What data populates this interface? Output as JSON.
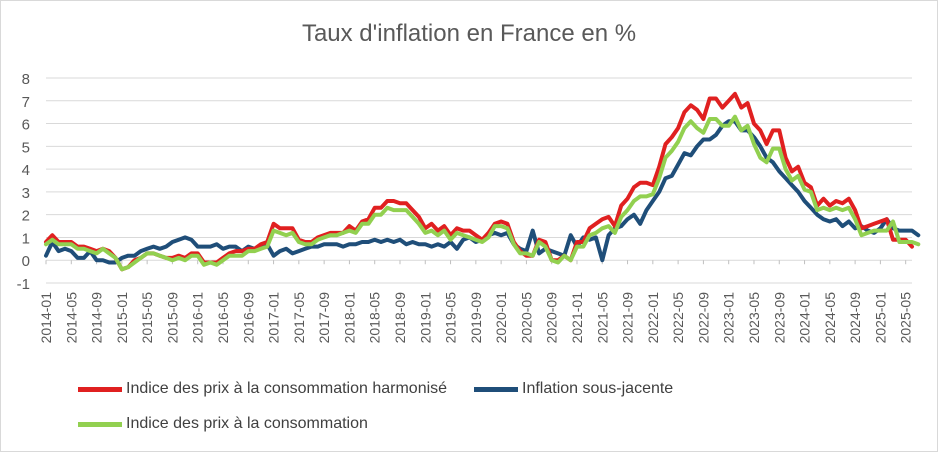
{
  "chart_data": {
    "type": "line",
    "title": "Taux d'inflation en France en %",
    "xlabel": "",
    "ylabel": "",
    "ylim": [
      -1,
      8
    ],
    "yticks": [
      -1,
      0,
      1,
      2,
      3,
      4,
      5,
      6,
      7,
      8
    ],
    "grid": "horizontal",
    "legend_position": "bottom",
    "x_tick_labels": [
      "2014-01",
      "2014-05",
      "2014-09",
      "2015-01",
      "2015-05",
      "2015-09",
      "2016-01",
      "2016-05",
      "2016-09",
      "2017-01",
      "2017-05",
      "2017-09",
      "2018-01",
      "2018-05",
      "2018-09",
      "2019-01",
      "2019-05",
      "2019-09",
      "2020-01",
      "2020-05",
      "2020-09",
      "2021-01",
      "2021-05",
      "2021-09",
      "2022-01",
      "2022-05",
      "2022-09",
      "2023-01",
      "2023-05",
      "2023-09",
      "2024-01",
      "2024-05",
      "2024-09",
      "2025-01",
      "2025-05"
    ],
    "x_start": "2014-01",
    "x_end": "2025-05",
    "series": [
      {
        "name": "Indice des prix à la consommation harmonisé",
        "color": "#e02020",
        "values": [
          0.8,
          1.1,
          0.8,
          0.8,
          0.8,
          0.6,
          0.6,
          0.5,
          0.4,
          0.5,
          0.4,
          0.1,
          -0.4,
          -0.3,
          0.0,
          0.1,
          0.3,
          0.3,
          0.2,
          0.1,
          0.1,
          0.2,
          0.1,
          0.3,
          0.3,
          -0.1,
          -0.1,
          -0.1,
          0.1,
          0.3,
          0.4,
          0.4,
          0.5,
          0.5,
          0.7,
          0.8,
          1.6,
          1.4,
          1.4,
          1.4,
          0.9,
          0.8,
          0.8,
          1.0,
          1.1,
          1.2,
          1.2,
          1.2,
          1.5,
          1.3,
          1.7,
          1.8,
          2.3,
          2.3,
          2.6,
          2.6,
          2.5,
          2.5,
          2.2,
          1.9,
          1.4,
          1.6,
          1.3,
          1.5,
          1.1,
          1.4,
          1.3,
          1.3,
          1.1,
          0.9,
          1.2,
          1.6,
          1.7,
          1.6,
          0.8,
          0.4,
          0.2,
          0.2,
          0.9,
          0.8,
          0.0,
          0.0,
          0.2,
          0.0,
          0.8,
          0.8,
          1.4,
          1.6,
          1.8,
          1.9,
          1.5,
          2.4,
          2.7,
          3.2,
          3.4,
          3.4,
          3.3,
          4.1,
          5.1,
          5.4,
          5.8,
          6.5,
          6.8,
          6.6,
          6.2,
          7.1,
          7.1,
          6.7,
          7.0,
          7.3,
          6.7,
          6.9,
          6.0,
          5.7,
          5.1,
          5.7,
          5.7,
          4.5,
          3.9,
          4.1,
          3.4,
          3.2,
          2.4,
          2.7,
          2.4,
          2.6,
          2.5,
          2.7,
          2.2,
          1.4,
          1.5,
          1.6,
          1.7,
          1.8,
          0.9,
          0.9,
          0.9,
          0.6
        ]
      },
      {
        "name": "Inflation sous-jacente",
        "color": "#1f4e79",
        "values": [
          0.2,
          0.8,
          0.4,
          0.5,
          0.4,
          0.1,
          0.1,
          0.4,
          0.0,
          0.0,
          -0.1,
          -0.1,
          0.1,
          0.2,
          0.2,
          0.4,
          0.5,
          0.6,
          0.5,
          0.6,
          0.8,
          0.9,
          1.0,
          0.9,
          0.6,
          0.6,
          0.6,
          0.7,
          0.5,
          0.6,
          0.6,
          0.4,
          0.6,
          0.5,
          0.6,
          0.7,
          0.2,
          0.4,
          0.5,
          0.3,
          0.4,
          0.5,
          0.6,
          0.6,
          0.7,
          0.7,
          0.7,
          0.6,
          0.7,
          0.7,
          0.8,
          0.8,
          0.9,
          0.8,
          0.9,
          0.8,
          0.9,
          0.7,
          0.8,
          0.7,
          0.7,
          0.6,
          0.7,
          0.6,
          0.8,
          0.5,
          0.9,
          1.0,
          0.8,
          0.9,
          1.1,
          1.2,
          1.1,
          1.2,
          0.7,
          0.5,
          0.4,
          1.3,
          0.3,
          0.5,
          0.4,
          0.3,
          0.2,
          1.1,
          0.6,
          1.0,
          0.9,
          1.0,
          0.0,
          1.1,
          1.4,
          1.5,
          1.8,
          2.0,
          1.6,
          2.2,
          2.6,
          3.0,
          3.6,
          3.7,
          4.2,
          4.7,
          4.6,
          5.0,
          5.3,
          5.3,
          5.5,
          5.9,
          6.1,
          6.1,
          5.7,
          5.7,
          5.4,
          5.0,
          4.5,
          4.3,
          3.9,
          3.6,
          3.3,
          3.0,
          2.6,
          2.3,
          2.0,
          1.8,
          1.7,
          1.8,
          1.5,
          1.7,
          1.4,
          1.5,
          1.3,
          1.2,
          1.4,
          1.8,
          1.4,
          1.3,
          1.3,
          1.3,
          1.1
        ]
      },
      {
        "name": "Indice des prix à la consommation",
        "color": "#92d050",
        "values": [
          0.7,
          0.9,
          0.7,
          0.7,
          0.7,
          0.5,
          0.5,
          0.4,
          0.3,
          0.5,
          0.3,
          0.1,
          -0.4,
          -0.3,
          -0.1,
          0.1,
          0.3,
          0.3,
          0.2,
          0.1,
          0.0,
          0.1,
          0.0,
          0.2,
          0.2,
          -0.2,
          -0.1,
          -0.2,
          0.0,
          0.2,
          0.2,
          0.2,
          0.4,
          0.4,
          0.5,
          0.6,
          1.3,
          1.2,
          1.1,
          1.2,
          0.8,
          0.7,
          0.7,
          0.9,
          1.0,
          1.1,
          1.1,
          1.2,
          1.3,
          1.2,
          1.6,
          1.6,
          2.0,
          2.0,
          2.3,
          2.2,
          2.2,
          2.2,
          1.9,
          1.6,
          1.2,
          1.3,
          1.1,
          1.3,
          0.9,
          1.2,
          1.1,
          1.0,
          0.9,
          0.8,
          1.0,
          1.5,
          1.5,
          1.4,
          0.7,
          0.3,
          0.3,
          0.2,
          0.8,
          0.6,
          0.0,
          -0.1,
          0.2,
          0.0,
          0.6,
          0.6,
          1.1,
          1.2,
          1.4,
          1.5,
          1.2,
          1.9,
          2.2,
          2.6,
          2.8,
          2.8,
          2.9,
          3.6,
          4.5,
          4.8,
          5.2,
          5.8,
          6.1,
          5.8,
          5.6,
          6.2,
          6.2,
          5.9,
          5.9,
          6.3,
          5.7,
          5.9,
          5.1,
          4.5,
          4.3,
          4.9,
          4.9,
          4.0,
          3.5,
          3.7,
          3.1,
          3.0,
          2.2,
          2.3,
          2.2,
          2.3,
          2.2,
          2.3,
          1.8,
          1.1,
          1.2,
          1.3,
          1.3,
          1.3,
          1.7,
          0.8,
          0.8,
          0.8,
          0.7
        ]
      }
    ]
  }
}
